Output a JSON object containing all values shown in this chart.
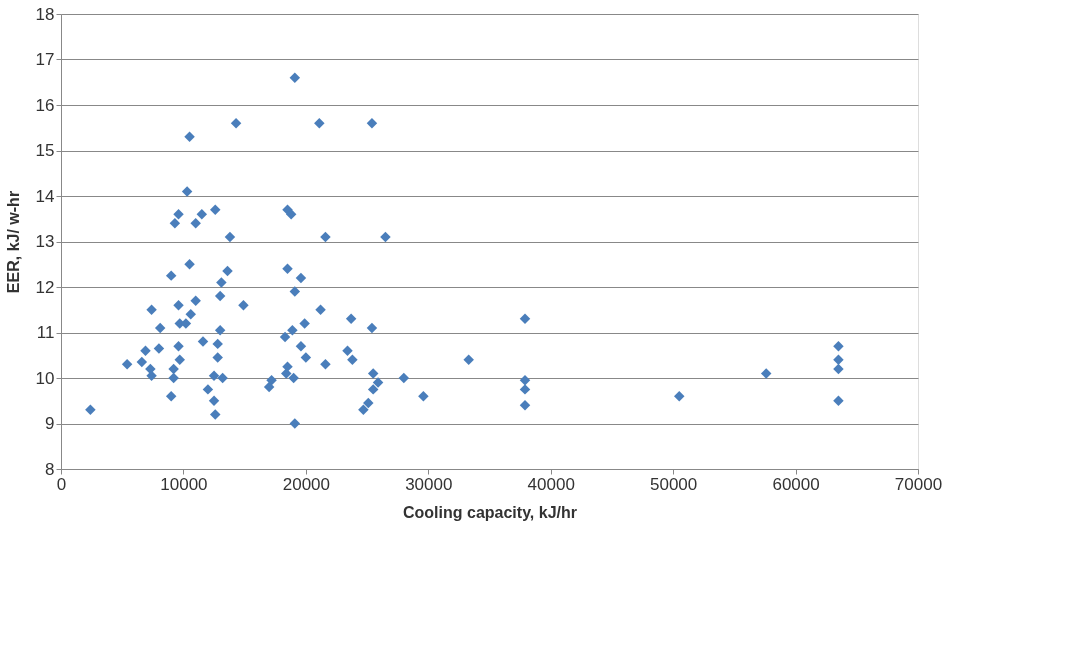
{
  "chart_data": {
    "type": "scatter",
    "xlabel": "Cooling capacity, kJ/hr",
    "ylabel": "EER, kJ/ w-hr",
    "xlim": [
      0,
      70000
    ],
    "xticks": [
      0,
      10000,
      20000,
      30000,
      40000,
      50000,
      60000,
      70000
    ],
    "ylim": [
      8,
      18
    ],
    "yticks": [
      8,
      9,
      10,
      11,
      12,
      13,
      14,
      15,
      16,
      17,
      18
    ],
    "grid": "y",
    "marker": "diamond",
    "legend": false,
    "series": [
      {
        "color": "#4a7ebb",
        "x": [
          2400,
          19100,
          10500,
          14300,
          21100,
          25400,
          10300,
          9600,
          9300,
          11000,
          11500,
          12600,
          18500,
          18800,
          13800,
          21600,
          26500,
          10500,
          9000,
          13600,
          13100,
          18500,
          19600,
          19100,
          13000,
          14900,
          7400,
          9600,
          11000,
          10600,
          21200,
          23700,
          37900,
          8100,
          9700,
          10200,
          13000,
          18300,
          18900,
          19900,
          25400,
          11600,
          12800,
          19600,
          63500,
          6900,
          8000,
          9600,
          23400,
          23800,
          5400,
          6600,
          7300,
          9200,
          9700,
          12800,
          20000,
          21600,
          33300,
          63500,
          7400,
          9200,
          12500,
          18500,
          19000,
          17200,
          17000,
          25500,
          25900,
          28000,
          37900,
          57600,
          63500,
          12000,
          25500,
          37900,
          9000,
          29600,
          50500,
          12500,
          63500,
          25100,
          24700,
          37900,
          12600,
          19100,
          18400,
          13200
        ],
        "values": [
          9.3,
          16.6,
          15.3,
          15.6,
          15.6,
          15.6,
          14.1,
          13.6,
          13.4,
          13.4,
          13.6,
          13.7,
          13.7,
          13.6,
          13.1,
          13.1,
          13.1,
          12.5,
          12.25,
          12.35,
          12.1,
          12.4,
          12.2,
          11.9,
          11.8,
          11.6,
          11.5,
          11.6,
          11.7,
          11.4,
          11.5,
          11.3,
          11.3,
          11.1,
          11.2,
          11.2,
          11.05,
          10.9,
          11.05,
          11.2,
          11.1,
          10.8,
          10.75,
          10.7,
          10.7,
          10.6,
          10.65,
          10.7,
          10.6,
          10.4,
          10.3,
          10.35,
          10.2,
          10.2,
          10.4,
          10.45,
          10.45,
          10.3,
          10.4,
          10.4,
          10.05,
          10.0,
          10.05,
          10.25,
          10.0,
          9.95,
          9.8,
          10.1,
          9.9,
          10.0,
          9.95,
          10.1,
          10.2,
          9.75,
          9.75,
          9.75,
          9.6,
          9.6,
          9.6,
          9.5,
          9.5,
          9.45,
          9.3,
          9.4,
          9.2,
          9.0,
          10.1,
          10.0
        ]
      }
    ]
  }
}
